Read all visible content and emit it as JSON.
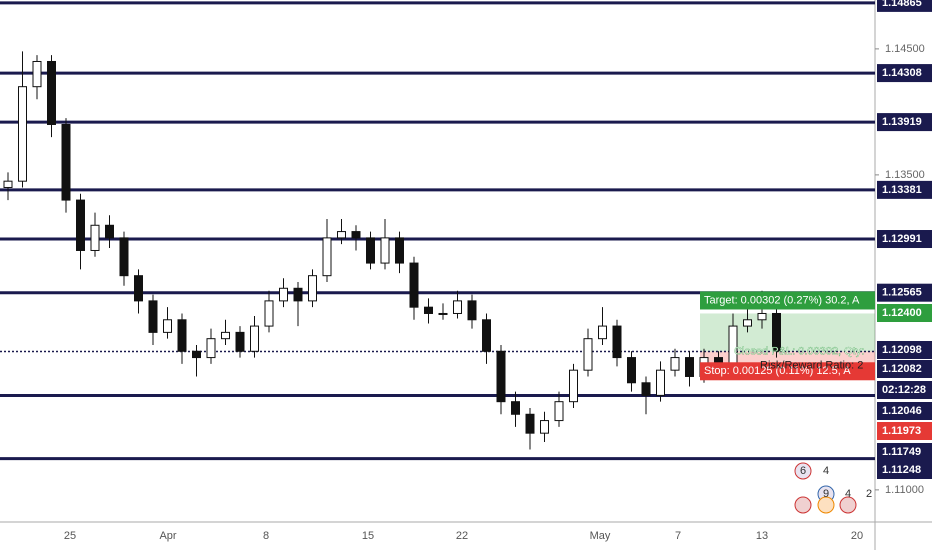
{
  "chart": {
    "ylim": [
      1.10745,
      1.14888
    ],
    "levels": [
      {
        "value": 1.14865,
        "label": "1.14865"
      },
      {
        "value": 1.14308,
        "label": "1.14308"
      },
      {
        "value": 1.13919,
        "label": "1.13919"
      },
      {
        "value": 1.13381,
        "label": "1.13381"
      },
      {
        "value": 1.12991,
        "label": "1.12991"
      },
      {
        "value": 1.12565,
        "label": "1.12565"
      },
      {
        "value": 1.12098,
        "label": "1.12098"
      },
      {
        "value": 1.11749,
        "label": "1.11749"
      },
      {
        "value": 1.11248,
        "label": "1.11248"
      }
    ],
    "grid_ticks": [
      {
        "value": 1.145,
        "label": "1.14500"
      },
      {
        "value": 1.135,
        "label": "1.13500"
      },
      {
        "value": 1.11,
        "label": "1.11000"
      }
    ],
    "extra_labels": [
      {
        "value": 1.12082,
        "label": "1.12082"
      },
      {
        "value": 1.12046,
        "label": "1.12046"
      }
    ],
    "countdown": "02:12:28",
    "dates": [
      "25",
      "Apr",
      "8",
      "15",
      "22",
      "May",
      "7",
      "13",
      "20"
    ],
    "position": {
      "entry": 1.12098,
      "target": {
        "value": 1.124,
        "label": "1.12400"
      },
      "stop": {
        "value": 1.11973,
        "label": "1.11973"
      },
      "target_text": "Target: 0.00302 (0.27%) 30.2, A",
      "closed_text": "Closed P&L: 0.00302, Qty:",
      "rr_text": "Risk/Reward Ratio: 2",
      "stop_text": "Stop: 0.00125 (0.11%) 12.5, A"
    },
    "badges": [
      "6",
      "4",
      "9",
      "4",
      "2"
    ],
    "open": [
      1.134,
      1.1345,
      1.142,
      1.144,
      1.139,
      1.133,
      1.129,
      1.131,
      1.13,
      1.127,
      1.125,
      1.1225,
      1.1235,
      1.121,
      1.1205,
      1.122,
      1.1225,
      1.121,
      1.123,
      1.125,
      1.126,
      1.125,
      1.127,
      1.13,
      1.1305,
      1.13,
      1.128,
      1.13,
      1.128,
      1.1245,
      1.124,
      1.124,
      1.125,
      1.1235,
      1.121,
      1.117,
      1.116,
      1.1145,
      1.1155,
      1.117,
      1.1195,
      1.122,
      1.123,
      1.1205,
      1.1185,
      1.1175,
      1.1195,
      1.1205,
      1.119,
      1.1205,
      1.12,
      1.123,
      1.1235,
      1.124
    ],
    "high": [
      1.1352,
      1.1448,
      1.1445,
      1.1445,
      1.1395,
      1.1335,
      1.132,
      1.1318,
      1.1305,
      1.1275,
      1.1255,
      1.1245,
      1.124,
      1.1215,
      1.1228,
      1.1235,
      1.123,
      1.1238,
      1.1258,
      1.1268,
      1.1265,
      1.1275,
      1.1315,
      1.1315,
      1.131,
      1.1305,
      1.1315,
      1.1305,
      1.1285,
      1.1252,
      1.1248,
      1.1258,
      1.1255,
      1.124,
      1.1215,
      1.1178,
      1.1165,
      1.1162,
      1.1178,
      1.12,
      1.1228,
      1.1245,
      1.1235,
      1.121,
      1.119,
      1.1202,
      1.1212,
      1.121,
      1.1212,
      1.121,
      1.124,
      1.1252,
      1.1258,
      1.1245
    ],
    "low": [
      1.133,
      1.134,
      1.141,
      1.138,
      1.132,
      1.1275,
      1.1285,
      1.1292,
      1.1262,
      1.124,
      1.1215,
      1.122,
      1.12,
      1.119,
      1.12,
      1.1215,
      1.1205,
      1.1205,
      1.1225,
      1.1245,
      1.123,
      1.1245,
      1.1265,
      1.1295,
      1.129,
      1.1275,
      1.1275,
      1.1272,
      1.1235,
      1.1232,
      1.1235,
      1.1236,
      1.1228,
      1.12,
      1.116,
      1.115,
      1.1132,
      1.1138,
      1.115,
      1.1165,
      1.119,
      1.1215,
      1.1198,
      1.1178,
      1.116,
      1.117,
      1.119,
      1.1182,
      1.1185,
      1.1195,
      1.1195,
      1.1225,
      1.1228,
      1.1205
    ],
    "close": [
      1.1345,
      1.142,
      1.144,
      1.139,
      1.133,
      1.129,
      1.131,
      1.13,
      1.127,
      1.125,
      1.1225,
      1.1235,
      1.121,
      1.1205,
      1.122,
      1.1225,
      1.121,
      1.123,
      1.125,
      1.126,
      1.125,
      1.127,
      1.13,
      1.1305,
      1.13,
      1.128,
      1.13,
      1.128,
      1.1245,
      1.124,
      1.124,
      1.125,
      1.1235,
      1.121,
      1.117,
      1.116,
      1.1145,
      1.1155,
      1.117,
      1.1195,
      1.122,
      1.123,
      1.1205,
      1.1185,
      1.1175,
      1.1195,
      1.1205,
      1.119,
      1.1205,
      1.12,
      1.123,
      1.1235,
      1.124,
      1.121
    ]
  }
}
